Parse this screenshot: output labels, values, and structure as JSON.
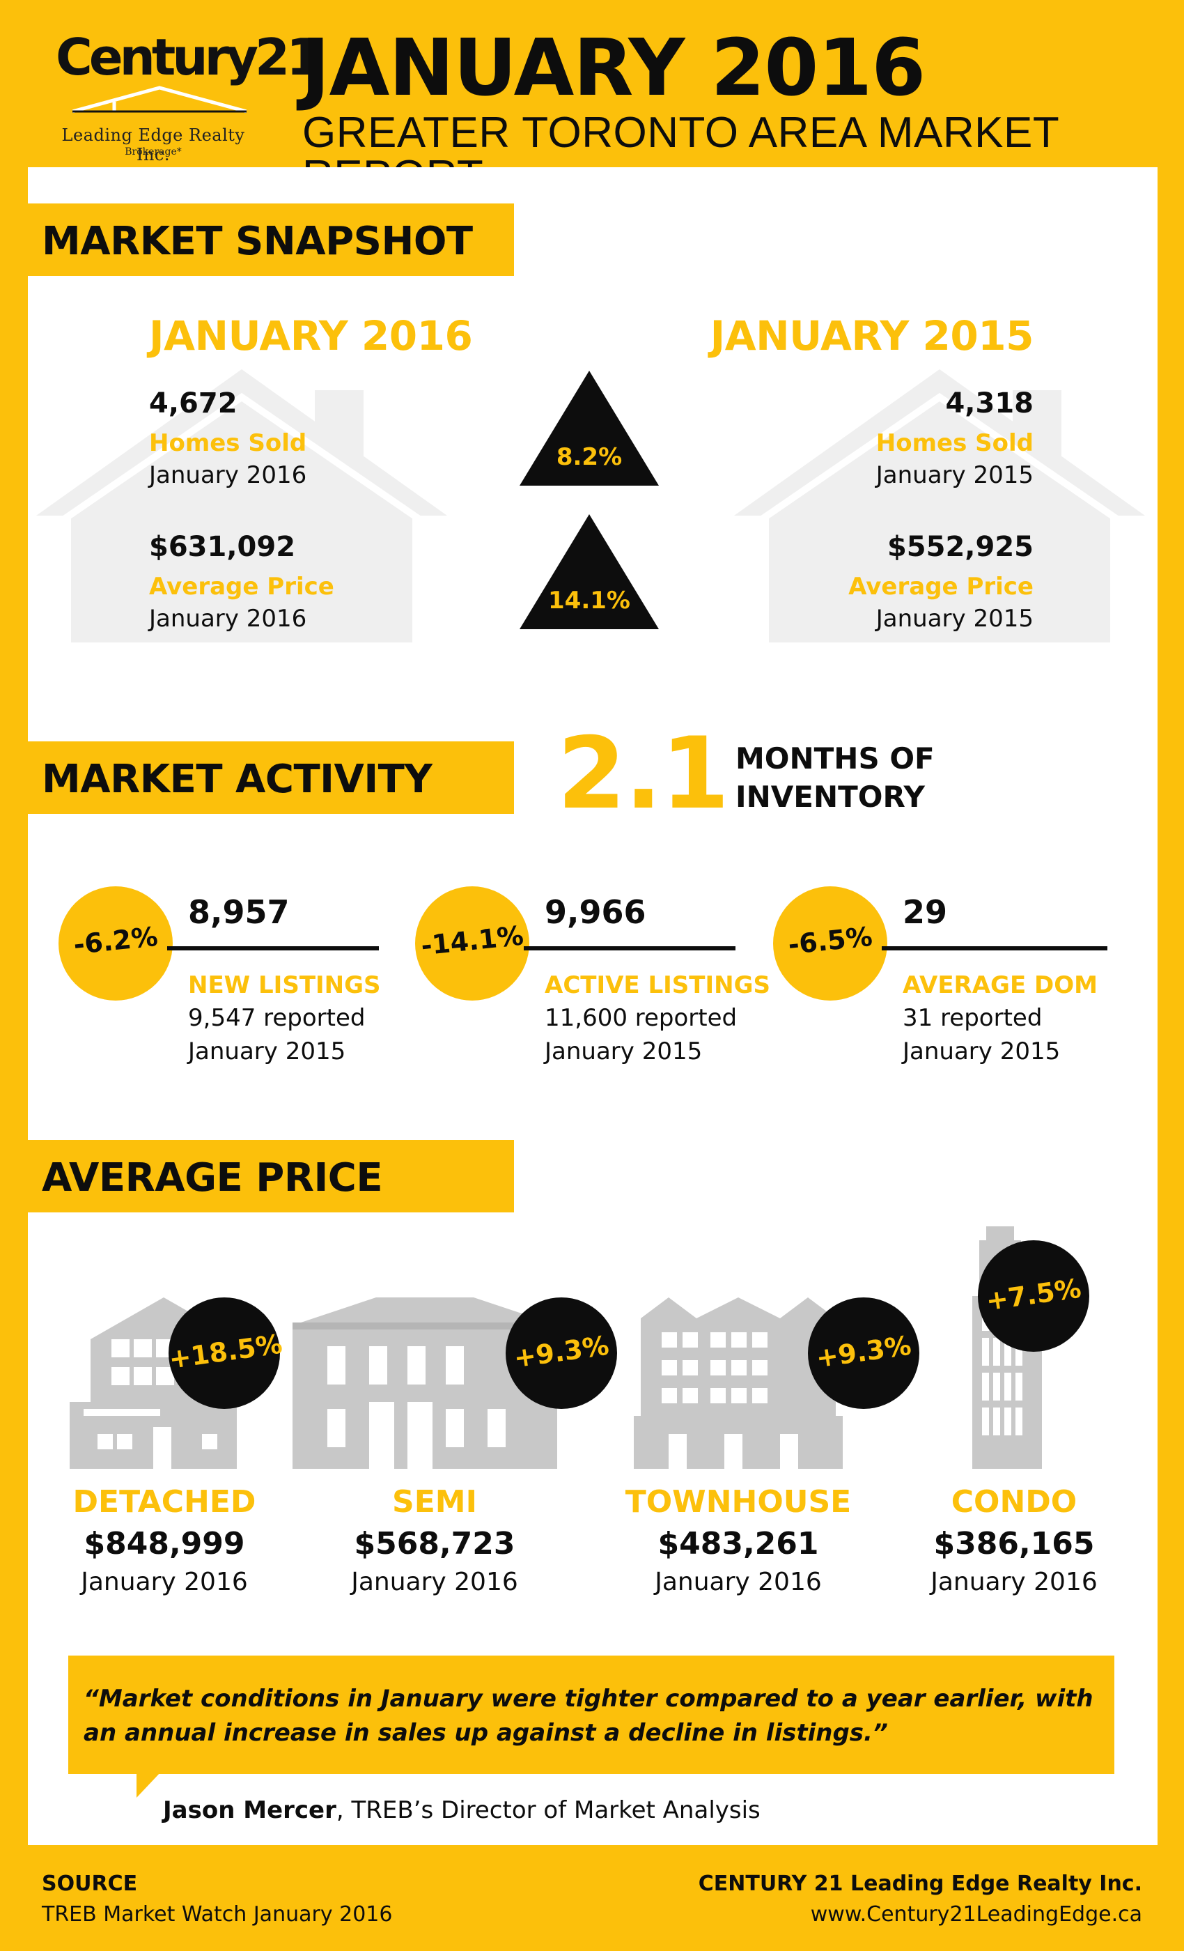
{
  "header": {
    "logo_word": "Century21",
    "logo_sub": "Leading Edge Realty Inc.",
    "logo_sub2": "Brokerage*",
    "title": "JANUARY 2016",
    "subtitle": "GREATER TORONTO AREA MARKET REPORT"
  },
  "snapshot": {
    "section_title": "MARKET SNAPSHOT",
    "left_heading": "JANUARY 2016",
    "right_heading": "JANUARY 2015",
    "rows": [
      {
        "left_value": "4,672",
        "label": "Homes Sold",
        "left_period": "January 2016",
        "right_value": "4,318",
        "right_period": "January 2015",
        "change": "8.2%"
      },
      {
        "left_value": "$631,092",
        "label": "Average Price",
        "left_period": "January 2016",
        "right_value": "$552,925",
        "right_period": "January 2015",
        "change": "14.1%"
      }
    ]
  },
  "activity": {
    "section_title": "MARKET ACTIVITY",
    "months_value": "2.1",
    "months_label_1": "MONTHS OF",
    "months_label_2": "INVENTORY",
    "items": [
      {
        "change": "-6.2%",
        "value": "8,957",
        "label": "NEW LISTINGS",
        "reported": "9,547 reported",
        "period": "January  2015"
      },
      {
        "change": "-14.1%",
        "value": "9,966",
        "label": "ACTIVE LISTINGS",
        "reported": "11,600 reported",
        "period": "January  2015"
      },
      {
        "change": "-6.5%",
        "value": "29",
        "label": "AVERAGE DOM",
        "reported": "31 reported",
        "period": "January  2015"
      }
    ]
  },
  "average_price": {
    "section_title": "AVERAGE PRICE",
    "types": [
      {
        "type": "DETACHED",
        "change": "+18.5%",
        "price": "$848,999",
        "period": "January  2016",
        "icon": "detached-house-icon"
      },
      {
        "type": "SEMI",
        "change": "+9.3%",
        "price": "$568,723",
        "period": "January  2016",
        "icon": "semi-house-icon"
      },
      {
        "type": "TOWNHOUSE",
        "change": "+9.3%",
        "price": "$483,261",
        "period": "January  2016",
        "icon": "townhouse-icon"
      },
      {
        "type": "CONDO",
        "change": "+7.5%",
        "price": "$386,165",
        "period": "January  2016",
        "icon": "condo-tower-icon"
      }
    ]
  },
  "quote": {
    "text": "“Market conditions in January were tighter compared to a year earlier, with an annual increase in sales up against a decline in listings.”",
    "author": "Jason Mercer",
    "author_title": ", TREB’s Director of Market Analysis"
  },
  "footer": {
    "source_label": "SOURCE",
    "source_text": "TREB Market Watch January  2016",
    "company": "CENTURY 21 Leading Edge Realty Inc.",
    "website": "www.Century21LeadingEdge.ca"
  },
  "colors": {
    "accent": "#fcc00b",
    "ink": "#0d0d0d",
    "building_gray": "#c8c8c8",
    "house_gray": "#efefef"
  }
}
